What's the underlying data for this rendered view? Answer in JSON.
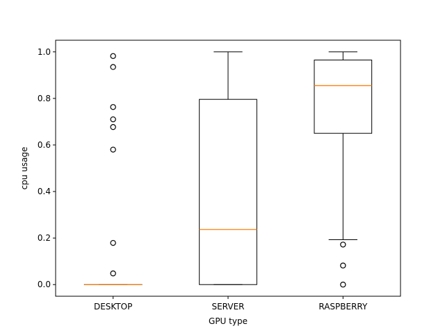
{
  "chart_data": {
    "type": "box",
    "title": "",
    "xlabel": "GPU type",
    "ylabel": "cpu usage",
    "ylim": [
      -0.05,
      1.05
    ],
    "yticks": [
      0.0,
      0.2,
      0.4,
      0.6,
      0.8,
      1.0
    ],
    "ytick_labels": [
      "0.0",
      "0.2",
      "0.4",
      "0.6",
      "0.8",
      "1.0"
    ],
    "categories": [
      "DESKTOP",
      "SERVER",
      "RASPBERRY"
    ],
    "boxes": [
      {
        "category": "DESKTOP",
        "whisker_low": 0.0,
        "q1": 0.0,
        "median": 0.0,
        "q3": 0.0,
        "whisker_high": 0.0,
        "outliers": [
          0.982,
          0.935,
          0.763,
          0.71,
          0.677,
          0.58,
          0.179,
          0.048
        ]
      },
      {
        "category": "SERVER",
        "whisker_low": 0.0,
        "q1": 0.0,
        "median": 0.237,
        "q3": 0.796,
        "whisker_high": 1.0,
        "outliers": []
      },
      {
        "category": "RASPBERRY",
        "whisker_low": 0.193,
        "q1": 0.65,
        "median": 0.855,
        "q3": 0.965,
        "whisker_high": 1.0,
        "outliers": [
          0.172,
          0.082,
          0.0
        ]
      }
    ],
    "colors": {
      "box": "#000000",
      "median": "#ff7f0e",
      "outlier": "#000000"
    },
    "grid": false,
    "legend": "none"
  }
}
